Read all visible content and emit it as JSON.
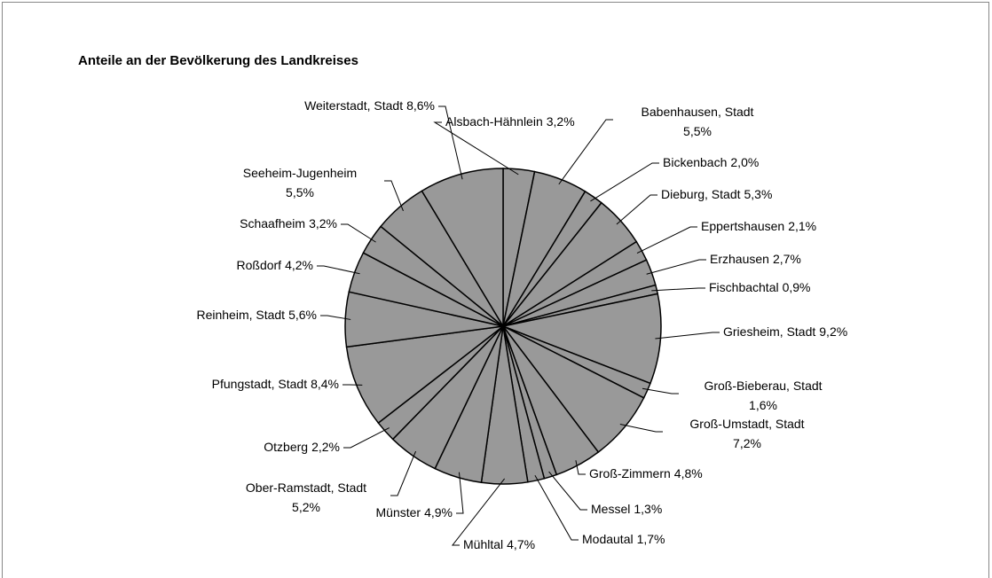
{
  "chart_data": {
    "type": "pie",
    "title": "Anteile an der Bevölkerung des Landkreises",
    "categories": [
      "Alsbach-Hähnlein",
      "Babenhausen, Stadt",
      "Bickenbach",
      "Dieburg, Stadt",
      "Eppertshausen",
      "Erzhausen",
      "Fischbachtal",
      "Griesheim, Stadt",
      "Groß-Bieberau, Stadt",
      "Groß-Umstadt, Stadt",
      "Groß-Zimmern",
      "Messel",
      "Modautal",
      "Mühltal",
      "Münster",
      "Ober-Ramstadt, Stadt",
      "Otzberg",
      "Pfungstadt, Stadt",
      "Reinheim, Stadt",
      "Roßdorf",
      "Schaafheim",
      "Seeheim-Jugenheim",
      "Weiterstadt, Stadt"
    ],
    "values": [
      3.2,
      5.5,
      2.0,
      5.3,
      2.1,
      2.7,
      0.9,
      9.2,
      1.6,
      7.2,
      4.8,
      1.3,
      1.7,
      4.7,
      4.9,
      5.2,
      2.2,
      8.4,
      5.6,
      4.2,
      3.2,
      5.5,
      8.6
    ],
    "value_labels": [
      "3,2%",
      "5,5%",
      "2,0%",
      "5,3%",
      "2,1%",
      "2,7%",
      "0,9%",
      "9,2%",
      "1,6%",
      "7,2%",
      "4,8%",
      "1,3%",
      "1,7%",
      "4,7%",
      "4,9%",
      "5,2%",
      "2,2%",
      "8,4%",
      "5,6%",
      "4,2%",
      "3,2%",
      "5,5%",
      "8,6%"
    ],
    "color": "#999999"
  }
}
